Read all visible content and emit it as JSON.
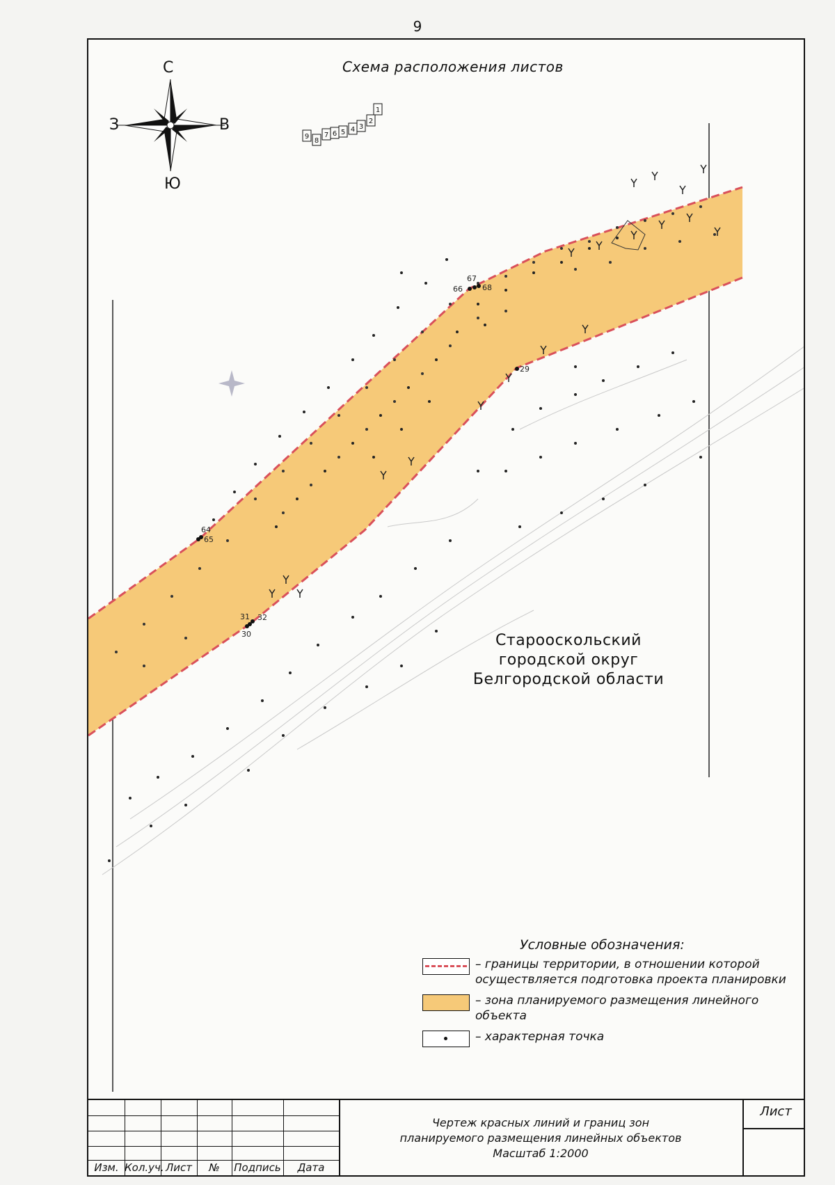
{
  "page_number": "9",
  "scheme": {
    "title": "Схема расположения листов",
    "sheets": [
      "1",
      "2",
      "3",
      "4",
      "5",
      "6",
      "7",
      "8",
      "9"
    ]
  },
  "compass": {
    "north": "С",
    "south": "Ю",
    "west": "З",
    "east": "В"
  },
  "region": {
    "line1": "Старооскольский",
    "line2": "городской округ",
    "line3": "Белгородской области"
  },
  "points": [
    "66",
    "67",
    "68",
    "29",
    "64",
    "65",
    "31",
    "32",
    "30"
  ],
  "legend": {
    "title": "Условные обозначения:",
    "items": [
      {
        "icon": "red-dashed-line",
        "text": "– границы территории, в отношении которой осуществляется подготовка проекта планировки"
      },
      {
        "icon": "orange-fill",
        "text": "– зона планируемого размещения линейного объекта"
      },
      {
        "icon": "dot",
        "text": "– характерная точка"
      }
    ]
  },
  "stamp": {
    "headers": [
      "Изм.",
      "Кол.уч.",
      "Лист",
      "№ док.",
      "Подпись",
      "Дата"
    ],
    "title_line1": "Чертеж красных линий и границ зон",
    "title_line2": "планируемого размещения линейных объектов",
    "scale": "Масштаб 1:2000",
    "sheet_label": "Лист"
  },
  "colors": {
    "zone_fill": "#f6c978",
    "boundary": "#d9505a",
    "frame": "#111111"
  }
}
